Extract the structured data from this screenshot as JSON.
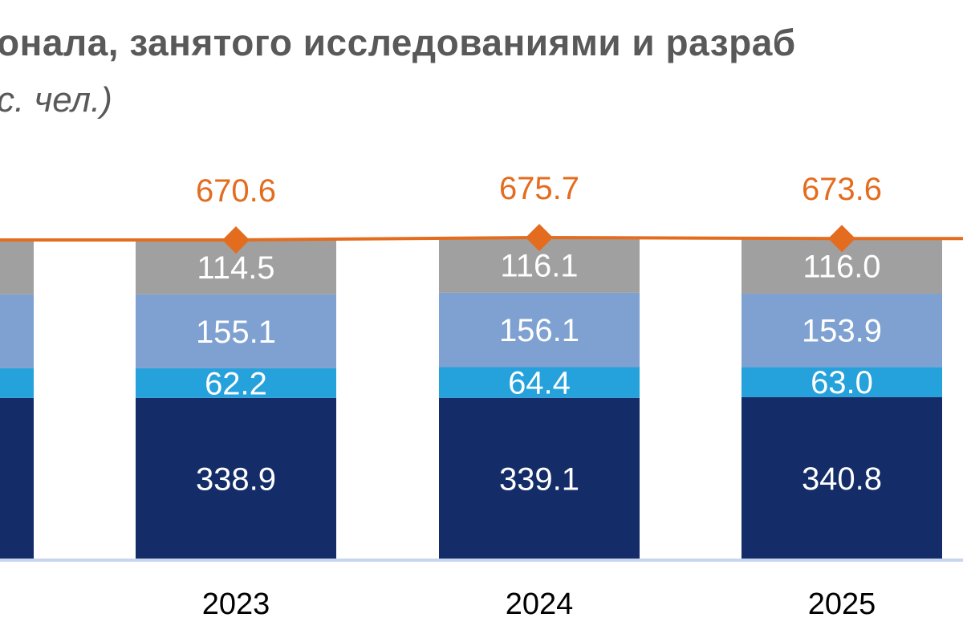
{
  "chart_data": {
    "type": "bar",
    "stacked": true,
    "title": "онала, занятого исследованиями и разраб",
    "subtitle": "с. чел.)",
    "categories": [
      "",
      "2023",
      "2024",
      "2025",
      ""
    ],
    "series": [
      {
        "values": [
          338.9,
          338.9,
          339.1,
          340.8,
          340.8
        ],
        "color": "#142d68"
      },
      {
        "values": [
          62.2,
          62.2,
          64.4,
          63.0,
          63.0
        ],
        "color": "#25a1dc"
      },
      {
        "values": [
          155.1,
          155.1,
          156.1,
          153.9,
          153.9
        ],
        "color": "#7fa1d2"
      },
      {
        "values": [
          114.5,
          114.5,
          116.1,
          116.0,
          116.0
        ],
        "color": "#a0a0a0"
      }
    ],
    "totals": {
      "type": "line",
      "values": [
        670.6,
        670.6,
        675.7,
        673.6,
        673.6
      ],
      "color": "#e46c1e",
      "marker": "diamond"
    },
    "visible_labels": {
      "segments": [
        "114.5",
        "155.1",
        "62.2",
        "338.9",
        "116.1",
        "156.1",
        "64.4",
        "339.1",
        "116.0",
        "153.9",
        "63.0",
        "340.8"
      ],
      "totals": [
        "670.6",
        "675.7",
        "673.6"
      ],
      "ticks": [
        "2023",
        "2024",
        "2025"
      ]
    },
    "grid": false,
    "legend": "none",
    "axis_color": "#c7d6ee"
  }
}
